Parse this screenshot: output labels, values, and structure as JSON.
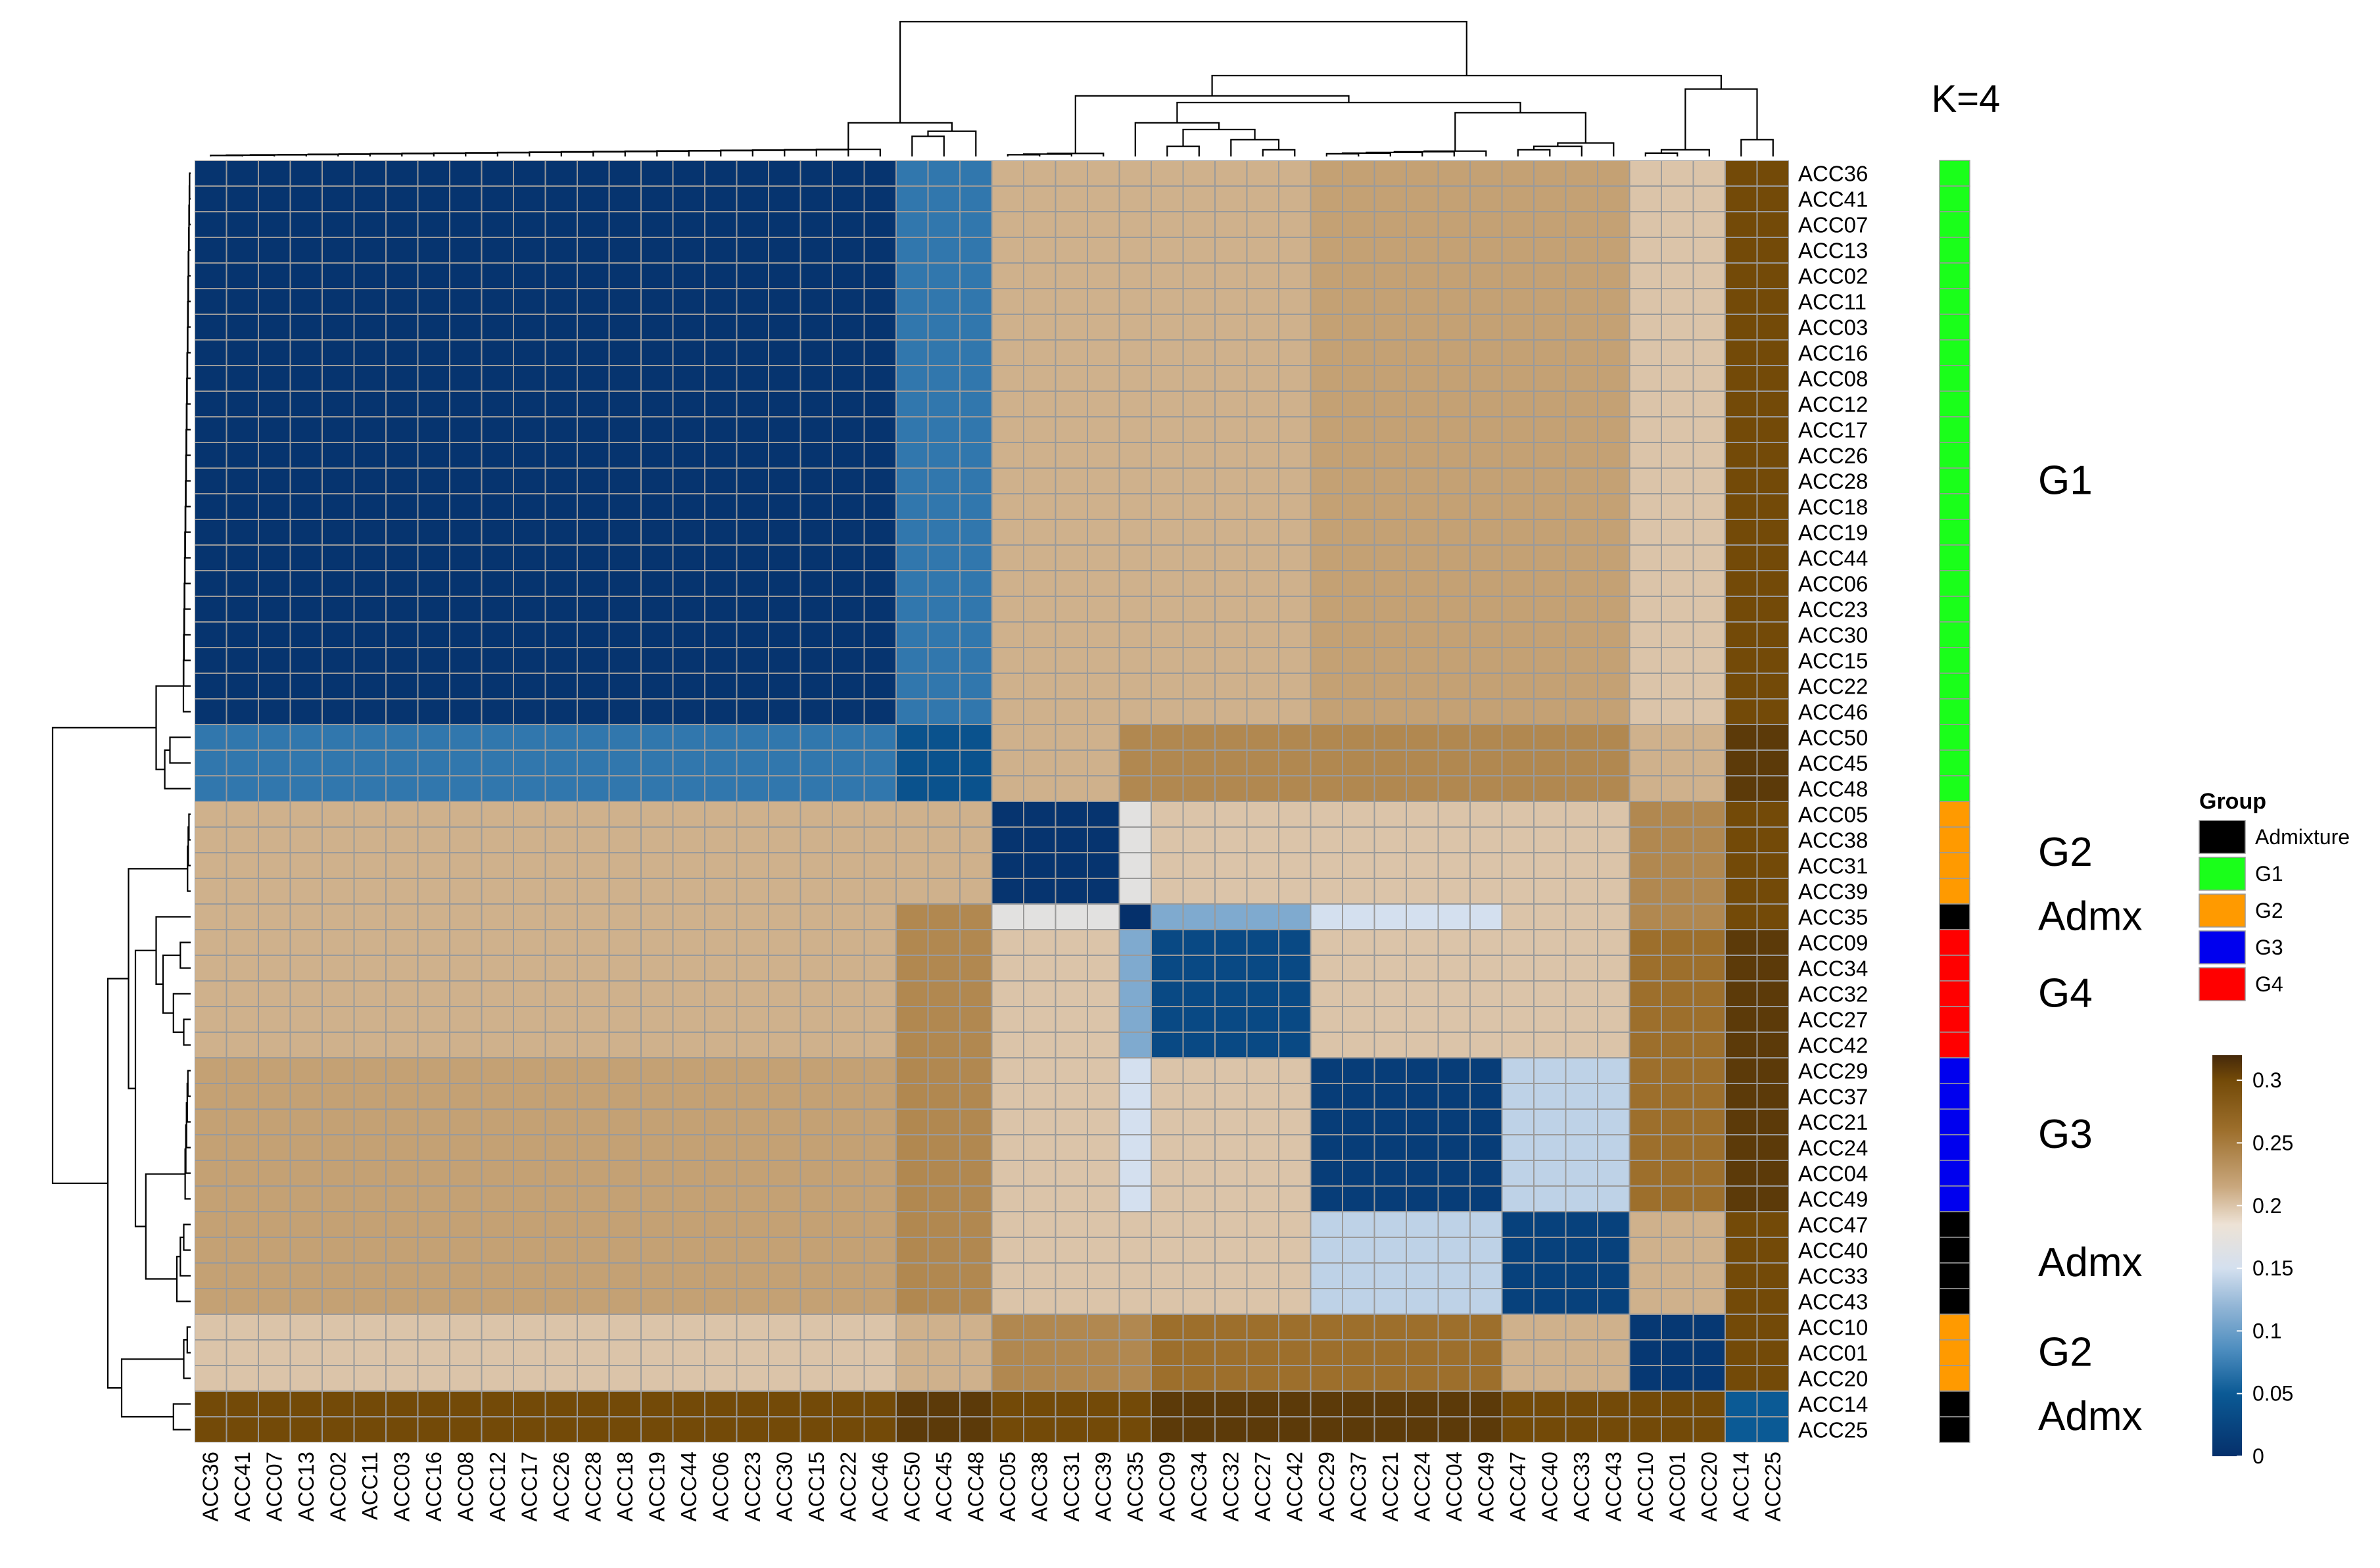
{
  "chart_data": {
    "type": "heatmap",
    "title": "K=4",
    "labels": [
      "ACC36",
      "ACC41",
      "ACC07",
      "ACC13",
      "ACC02",
      "ACC11",
      "ACC03",
      "ACC16",
      "ACC08",
      "ACC12",
      "ACC17",
      "ACC26",
      "ACC28",
      "ACC18",
      "ACC19",
      "ACC44",
      "ACC06",
      "ACC23",
      "ACC30",
      "ACC15",
      "ACC22",
      "ACC46",
      "ACC50",
      "ACC45",
      "ACC48",
      "ACC05",
      "ACC38",
      "ACC31",
      "ACC39",
      "ACC35",
      "ACC09",
      "ACC34",
      "ACC32",
      "ACC27",
      "ACC42",
      "ACC29",
      "ACC37",
      "ACC21",
      "ACC24",
      "ACC04",
      "ACC49",
      "ACC47",
      "ACC40",
      "ACC33",
      "ACC43",
      "ACC10",
      "ACC01",
      "ACC20",
      "ACC14",
      "ACC25"
    ],
    "groups": [
      "G1",
      "G1",
      "G1",
      "G1",
      "G1",
      "G1",
      "G1",
      "G1",
      "G1",
      "G1",
      "G1",
      "G1",
      "G1",
      "G1",
      "G1",
      "G1",
      "G1",
      "G1",
      "G1",
      "G1",
      "G1",
      "G1",
      "G1",
      "G1",
      "G1",
      "G2",
      "G2",
      "G2",
      "G2",
      "Admixture",
      "G4",
      "G4",
      "G4",
      "G4",
      "G4",
      "G3",
      "G3",
      "G3",
      "G3",
      "G3",
      "G3",
      "Admixture",
      "Admixture",
      "Admixture",
      "Admixture",
      "G2",
      "G2",
      "G2",
      "Admixture",
      "Admixture"
    ],
    "cluster_labels": [
      {
        "text": "G1",
        "rows": [
          0,
          24
        ]
      },
      {
        "text": "G2",
        "rows": [
          25,
          28
        ]
      },
      {
        "text": "Admx",
        "rows": [
          29,
          29
        ]
      },
      {
        "text": "G4",
        "rows": [
          30,
          34
        ]
      },
      {
        "text": "G3",
        "rows": [
          35,
          40
        ]
      },
      {
        "text": "Admx",
        "rows": [
          41,
          44
        ]
      },
      {
        "text": "G2",
        "rows": [
          45,
          47
        ]
      },
      {
        "text": "Admx",
        "rows": [
          48,
          49
        ]
      }
    ],
    "legend_group": {
      "title": "Group",
      "items": [
        {
          "label": "Admixture",
          "color": "#000000"
        },
        {
          "label": "G1",
          "color": "#1aff1a"
        },
        {
          "label": "G2",
          "color": "#ff9a00"
        },
        {
          "label": "G3",
          "color": "#0000ee"
        },
        {
          "label": "G4",
          "color": "#ff0000"
        }
      ]
    },
    "colorbar": {
      "ticks": [
        "0.3",
        "0.25",
        "0.2",
        "0.15",
        "0.1",
        "0.05",
        "0"
      ],
      "tick_values": [
        0.3,
        0.25,
        0.2,
        0.15,
        0.1,
        0.05,
        0
      ],
      "range": [
        0,
        0.32
      ]
    },
    "color_scale": [
      {
        "value": 0.0,
        "color": "#05306b"
      },
      {
        "value": 0.05,
        "color": "#0b5a95"
      },
      {
        "value": 0.085,
        "color": "#4d8dbf"
      },
      {
        "value": 0.12,
        "color": "#93b6d6"
      },
      {
        "value": 0.15,
        "color": "#d4e0ef"
      },
      {
        "value": 0.185,
        "color": "#ede2d5"
      },
      {
        "value": 0.215,
        "color": "#c9a77d"
      },
      {
        "value": 0.26,
        "color": "#9d6f2c"
      },
      {
        "value": 0.3,
        "color": "#734a08"
      },
      {
        "value": 0.32,
        "color": "#45290a"
      }
    ],
    "values_note": "",
    "block_values": [
      [
        0.005,
        0.07,
        0.21,
        0.21,
        0.21,
        0.22,
        0.22,
        0.2,
        0.3
      ],
      [
        0.07,
        0.04,
        0.21,
        0.24,
        0.24,
        0.24,
        0.24,
        0.21,
        0.31
      ],
      [
        0.21,
        0.21,
        0.005,
        0.17,
        0.2,
        0.2,
        0.2,
        0.24,
        0.3
      ],
      [
        0.21,
        0.24,
        0.17,
        0.0,
        0.11,
        0.15,
        0.2,
        0.24,
        0.3
      ],
      [
        0.21,
        0.24,
        0.2,
        0.11,
        0.03,
        0.2,
        0.2,
        0.26,
        0.31
      ],
      [
        0.22,
        0.24,
        0.2,
        0.15,
        0.2,
        0.015,
        0.14,
        0.26,
        0.31
      ],
      [
        0.22,
        0.24,
        0.2,
        0.2,
        0.2,
        0.14,
        0.02,
        0.21,
        0.3
      ],
      [
        0.2,
        0.21,
        0.24,
        0.24,
        0.26,
        0.26,
        0.21,
        0.01,
        0.3
      ],
      [
        0.3,
        0.31,
        0.3,
        0.3,
        0.31,
        0.31,
        0.3,
        0.3,
        0.05
      ]
    ],
    "block_of_label": [
      0,
      0,
      0,
      0,
      0,
      0,
      0,
      0,
      0,
      0,
      0,
      0,
      0,
      0,
      0,
      0,
      0,
      0,
      0,
      0,
      0,
      0,
      1,
      1,
      1,
      2,
      2,
      2,
      2,
      3,
      4,
      4,
      4,
      4,
      4,
      5,
      5,
      5,
      5,
      5,
      5,
      6,
      6,
      6,
      6,
      7,
      7,
      7,
      8,
      8
    ]
  }
}
